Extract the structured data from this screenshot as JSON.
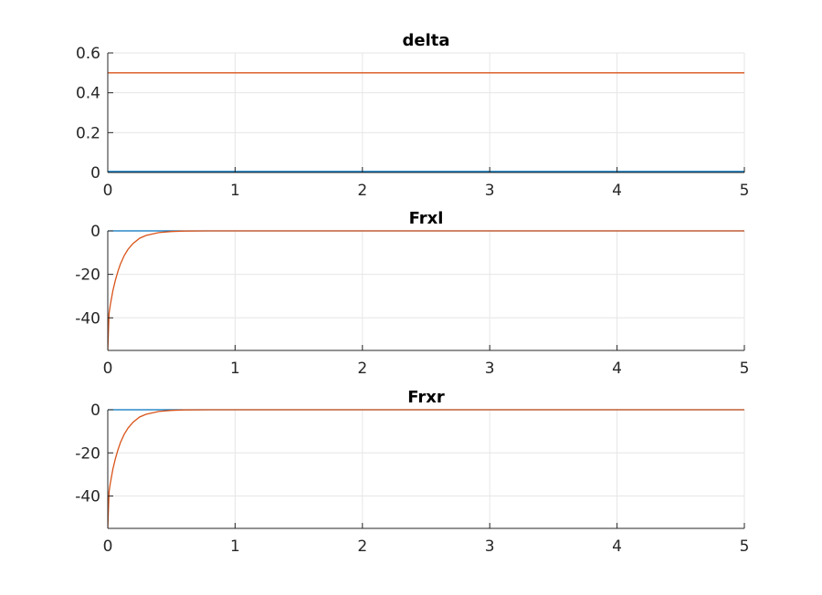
{
  "chart_data": [
    {
      "type": "line",
      "title": "delta",
      "xlabel": "",
      "ylabel": "",
      "xlim": [
        0,
        5
      ],
      "ylim": [
        0,
        0.6
      ],
      "xticks": [
        "0",
        "1",
        "2",
        "3",
        "4",
        "5"
      ],
      "yticks": [
        "0",
        "0.2",
        "0.4",
        "0.6"
      ],
      "grid": true,
      "series": [
        {
          "color": "#0072BD",
          "x": [
            0,
            5
          ],
          "y": [
            0.005,
            0.005
          ]
        },
        {
          "color": "#D95319",
          "x": [
            0,
            5
          ],
          "y": [
            0.5,
            0.5
          ]
        }
      ]
    },
    {
      "type": "line",
      "title": "Frxl",
      "xlabel": "",
      "ylabel": "",
      "xlim": [
        0,
        5
      ],
      "ylim": [
        -55,
        0
      ],
      "xticks": [
        "0",
        "1",
        "2",
        "3",
        "4",
        "5"
      ],
      "yticks": [
        "-40",
        "-20",
        "0"
      ],
      "grid": true,
      "series": [
        {
          "color": "#0072BD",
          "x": [
            0,
            5
          ],
          "y": [
            0,
            0
          ]
        },
        {
          "color": "#D95319",
          "x": [
            0,
            0.01,
            0.02,
            0.04,
            0.06,
            0.08,
            0.1,
            0.13,
            0.16,
            0.2,
            0.25,
            0.3,
            0.4,
            0.5,
            0.6,
            0.8,
            1.0,
            1.5,
            2,
            3,
            4,
            5
          ],
          "y": [
            -55,
            -38,
            -34,
            -27.5,
            -22.6,
            -18.5,
            -15.2,
            -11.3,
            -8.4,
            -5.7,
            -3.4,
            -2.1,
            -0.8,
            -0.3,
            -0.1,
            0,
            0,
            0,
            0,
            0,
            0,
            0
          ]
        }
      ]
    },
    {
      "type": "line",
      "title": "Frxr",
      "xlabel": "",
      "ylabel": "",
      "xlim": [
        0,
        5
      ],
      "ylim": [
        -55,
        0
      ],
      "xticks": [
        "0",
        "1",
        "2",
        "3",
        "4",
        "5"
      ],
      "yticks": [
        "-40",
        "-20",
        "0"
      ],
      "grid": true,
      "series": [
        {
          "color": "#0072BD",
          "x": [
            0,
            5
          ],
          "y": [
            0,
            0
          ]
        },
        {
          "color": "#D95319",
          "x": [
            0,
            0.01,
            0.02,
            0.04,
            0.06,
            0.08,
            0.1,
            0.13,
            0.16,
            0.2,
            0.25,
            0.3,
            0.4,
            0.5,
            0.6,
            0.8,
            1.0,
            1.5,
            2,
            3,
            4,
            5
          ],
          "y": [
            -55,
            -38,
            -34,
            -27.5,
            -22.6,
            -18.5,
            -15.2,
            -11.3,
            -8.4,
            -5.7,
            -3.4,
            -2.1,
            -0.8,
            -0.3,
            -0.1,
            0,
            0,
            0,
            0,
            0,
            0,
            0
          ]
        }
      ]
    }
  ]
}
